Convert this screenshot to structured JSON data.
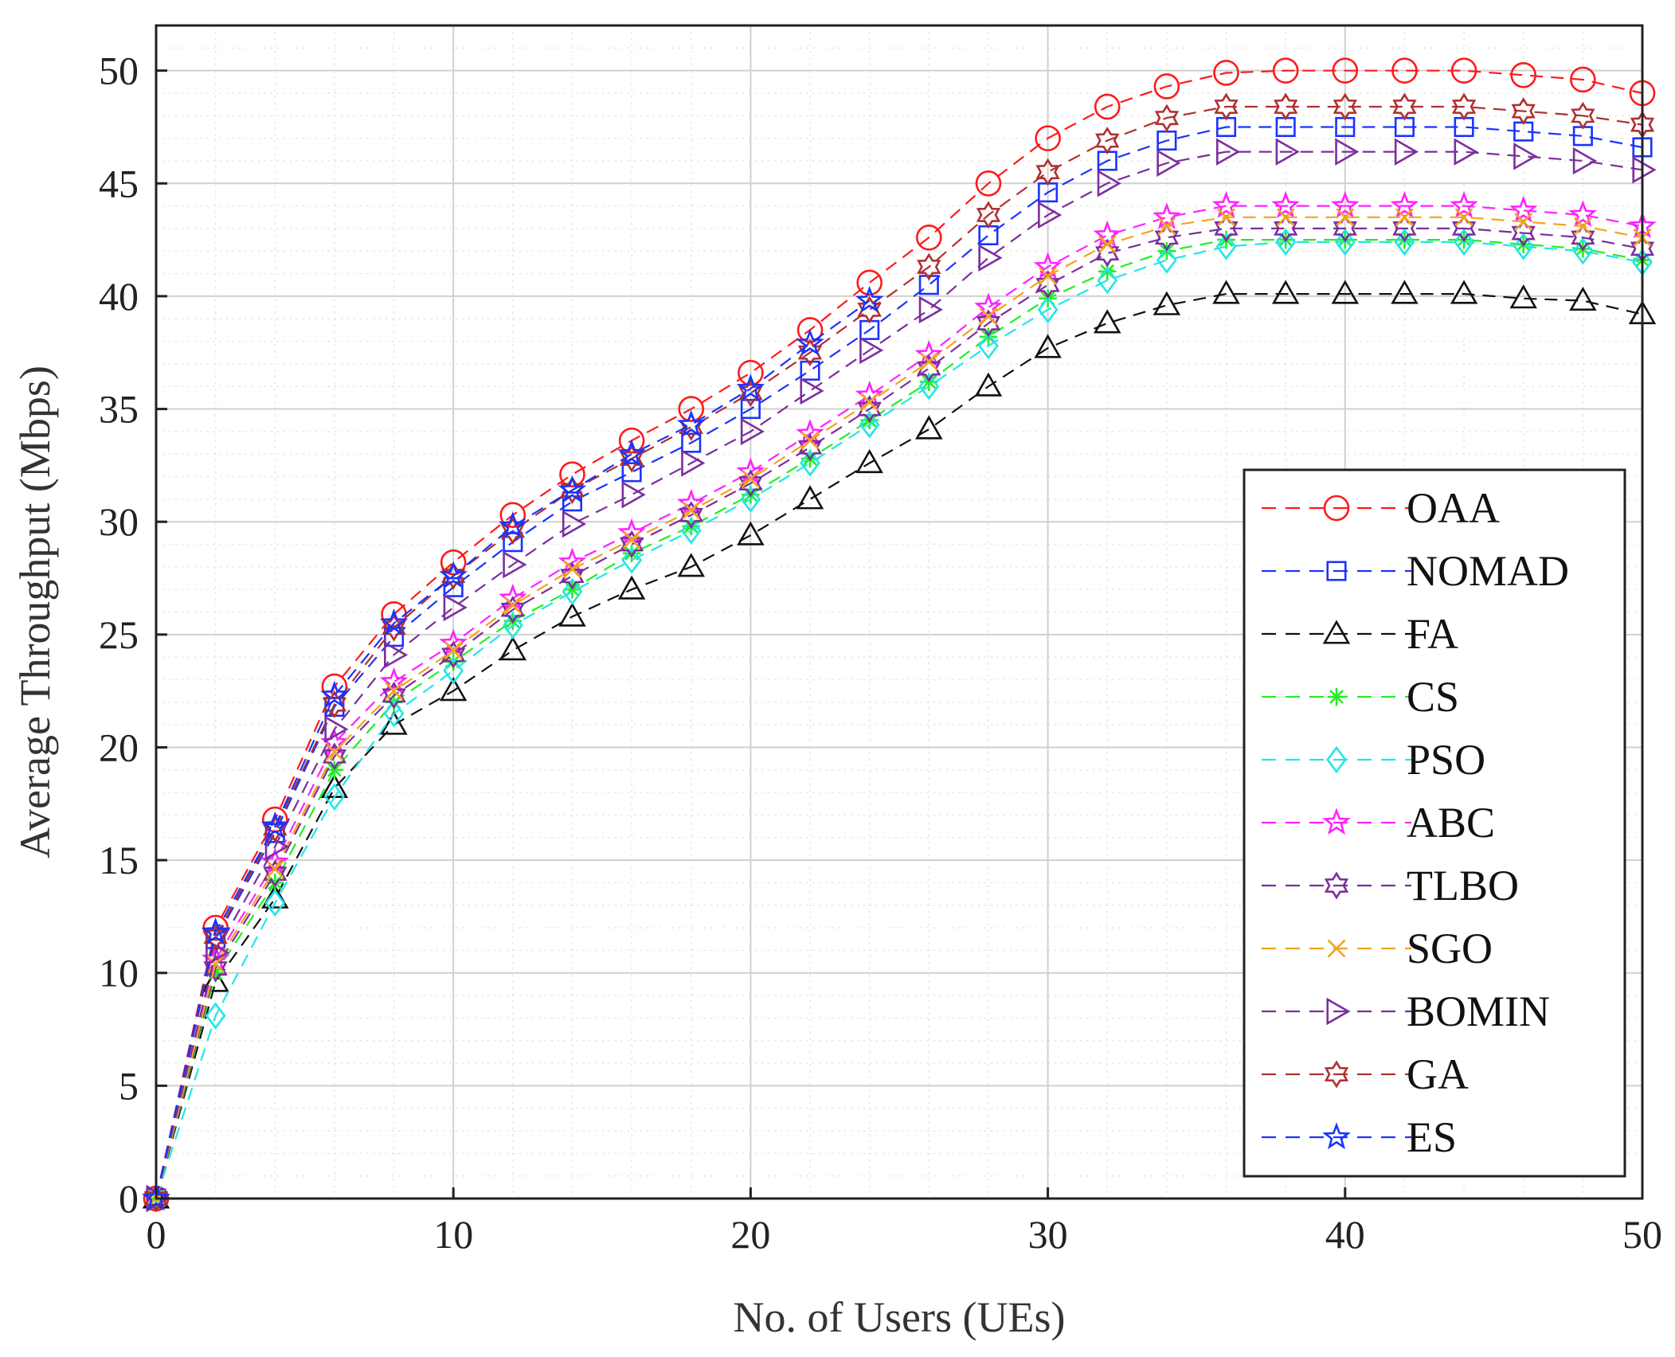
{
  "chart_data": {
    "type": "line",
    "title": "",
    "xlabel": "No. of Users (UEs)",
    "ylabel": "Average Throughput (Mbps)",
    "xlim": [
      0,
      50
    ],
    "ylim": [
      0,
      52
    ],
    "xticks": [
      0,
      10,
      20,
      30,
      40,
      50
    ],
    "yticks": [
      0,
      5,
      10,
      15,
      20,
      25,
      30,
      35,
      40,
      45,
      50
    ],
    "grid": true,
    "legend_position": "right",
    "x": [
      0,
      2,
      4,
      6,
      8,
      10,
      12,
      14,
      16,
      18,
      20,
      22,
      24,
      26,
      28,
      30,
      32,
      34,
      36,
      38,
      40,
      42,
      44,
      46,
      48,
      50
    ],
    "series": [
      {
        "name": "OAA",
        "color": "#ff1a1a",
        "marker": "circle",
        "values": [
          0,
          12.0,
          16.8,
          22.7,
          25.9,
          28.2,
          30.3,
          32.1,
          33.6,
          35.0,
          36.6,
          38.5,
          40.6,
          42.6,
          45.0,
          47.0,
          48.4,
          49.3,
          49.9,
          50.0,
          50.0,
          50.0,
          50.0,
          49.8,
          49.6,
          49.0
        ]
      },
      {
        "name": "NOMAD",
        "color": "#1a33ff",
        "marker": "square",
        "values": [
          0,
          11.5,
          16.2,
          21.8,
          24.9,
          27.1,
          29.1,
          30.9,
          32.2,
          33.5,
          35.0,
          36.7,
          38.5,
          40.5,
          42.7,
          44.6,
          46.0,
          46.9,
          47.5,
          47.5,
          47.5,
          47.5,
          47.5,
          47.3,
          47.1,
          46.6
        ]
      },
      {
        "name": "FA",
        "color": "#111111",
        "marker": "triangle-up",
        "values": [
          0,
          9.6,
          13.3,
          18.2,
          21.0,
          22.5,
          24.3,
          25.8,
          27.0,
          28.0,
          29.4,
          31.0,
          32.6,
          34.1,
          36.0,
          37.7,
          38.8,
          39.6,
          40.1,
          40.1,
          40.1,
          40.1,
          40.1,
          39.9,
          39.8,
          39.2
        ]
      },
      {
        "name": "CS",
        "color": "#22ee22",
        "marker": "asterisk",
        "values": [
          0,
          10.0,
          14.0,
          19.0,
          22.0,
          23.8,
          25.6,
          27.0,
          28.6,
          29.8,
          31.2,
          32.8,
          34.5,
          36.2,
          38.2,
          39.9,
          41.1,
          42.0,
          42.5,
          42.5,
          42.5,
          42.5,
          42.5,
          42.3,
          42.1,
          41.6
        ]
      },
      {
        "name": "PSO",
        "color": "#22e6e6",
        "marker": "diamond",
        "values": [
          0,
          8.1,
          13.1,
          17.8,
          21.5,
          23.4,
          25.4,
          26.9,
          28.3,
          29.6,
          31.0,
          32.6,
          34.3,
          36.0,
          37.8,
          39.4,
          40.7,
          41.6,
          42.2,
          42.4,
          42.4,
          42.4,
          42.4,
          42.2,
          42.0,
          41.5
        ]
      },
      {
        "name": "ABC",
        "color": "#ff22ff",
        "marker": "star",
        "values": [
          0,
          10.6,
          14.9,
          20.2,
          22.9,
          24.6,
          26.6,
          28.2,
          29.5,
          30.8,
          32.2,
          33.9,
          35.6,
          37.4,
          39.5,
          41.3,
          42.7,
          43.5,
          44.0,
          44.0,
          44.0,
          44.0,
          44.0,
          43.8,
          43.6,
          43.1
        ]
      },
      {
        "name": "TLBO",
        "color": "#7b2e9e",
        "marker": "hexagram",
        "values": [
          0,
          10.2,
          14.4,
          19.6,
          22.3,
          24.1,
          26.1,
          27.6,
          29.0,
          30.3,
          31.7,
          33.3,
          35.0,
          36.8,
          38.8,
          40.5,
          41.9,
          42.6,
          43.0,
          43.0,
          43.0,
          43.0,
          43.0,
          42.8,
          42.6,
          42.1
        ]
      },
      {
        "name": "SGO",
        "color": "#f2a41c",
        "marker": "x",
        "values": [
          0,
          10.4,
          14.6,
          19.8,
          22.5,
          24.3,
          26.3,
          27.9,
          29.2,
          30.5,
          31.9,
          33.6,
          35.3,
          37.1,
          39.1,
          40.9,
          42.3,
          43.1,
          43.5,
          43.5,
          43.5,
          43.5,
          43.5,
          43.3,
          43.1,
          42.6
        ]
      },
      {
        "name": "BOMIN",
        "color": "#7b2e9e",
        "marker": "triangle-right",
        "values": [
          0,
          10.9,
          15.6,
          20.8,
          24.1,
          26.2,
          28.1,
          29.9,
          31.2,
          32.6,
          34.0,
          35.8,
          37.6,
          39.4,
          41.7,
          43.6,
          45.0,
          45.9,
          46.4,
          46.4,
          46.4,
          46.4,
          46.4,
          46.2,
          46.0,
          45.6
        ]
      },
      {
        "name": "GA",
        "color": "#b03030",
        "marker": "hexagram",
        "values": [
          0,
          11.6,
          16.4,
          21.9,
          25.3,
          27.6,
          29.6,
          31.4,
          32.8,
          34.2,
          35.7,
          37.5,
          39.4,
          41.3,
          43.6,
          45.5,
          46.9,
          47.9,
          48.4,
          48.4,
          48.4,
          48.4,
          48.4,
          48.2,
          48.0,
          47.6
        ]
      },
      {
        "name": "ES",
        "color": "#1a33ff",
        "marker": "star",
        "values": [
          0,
          11.8,
          16.5,
          22.3,
          25.5,
          27.6,
          29.8,
          31.4,
          33.0,
          34.3,
          35.9,
          37.9,
          39.8,
          null,
          null,
          null,
          null,
          null,
          null,
          null,
          null,
          null,
          null,
          null,
          null,
          null
        ]
      }
    ]
  }
}
